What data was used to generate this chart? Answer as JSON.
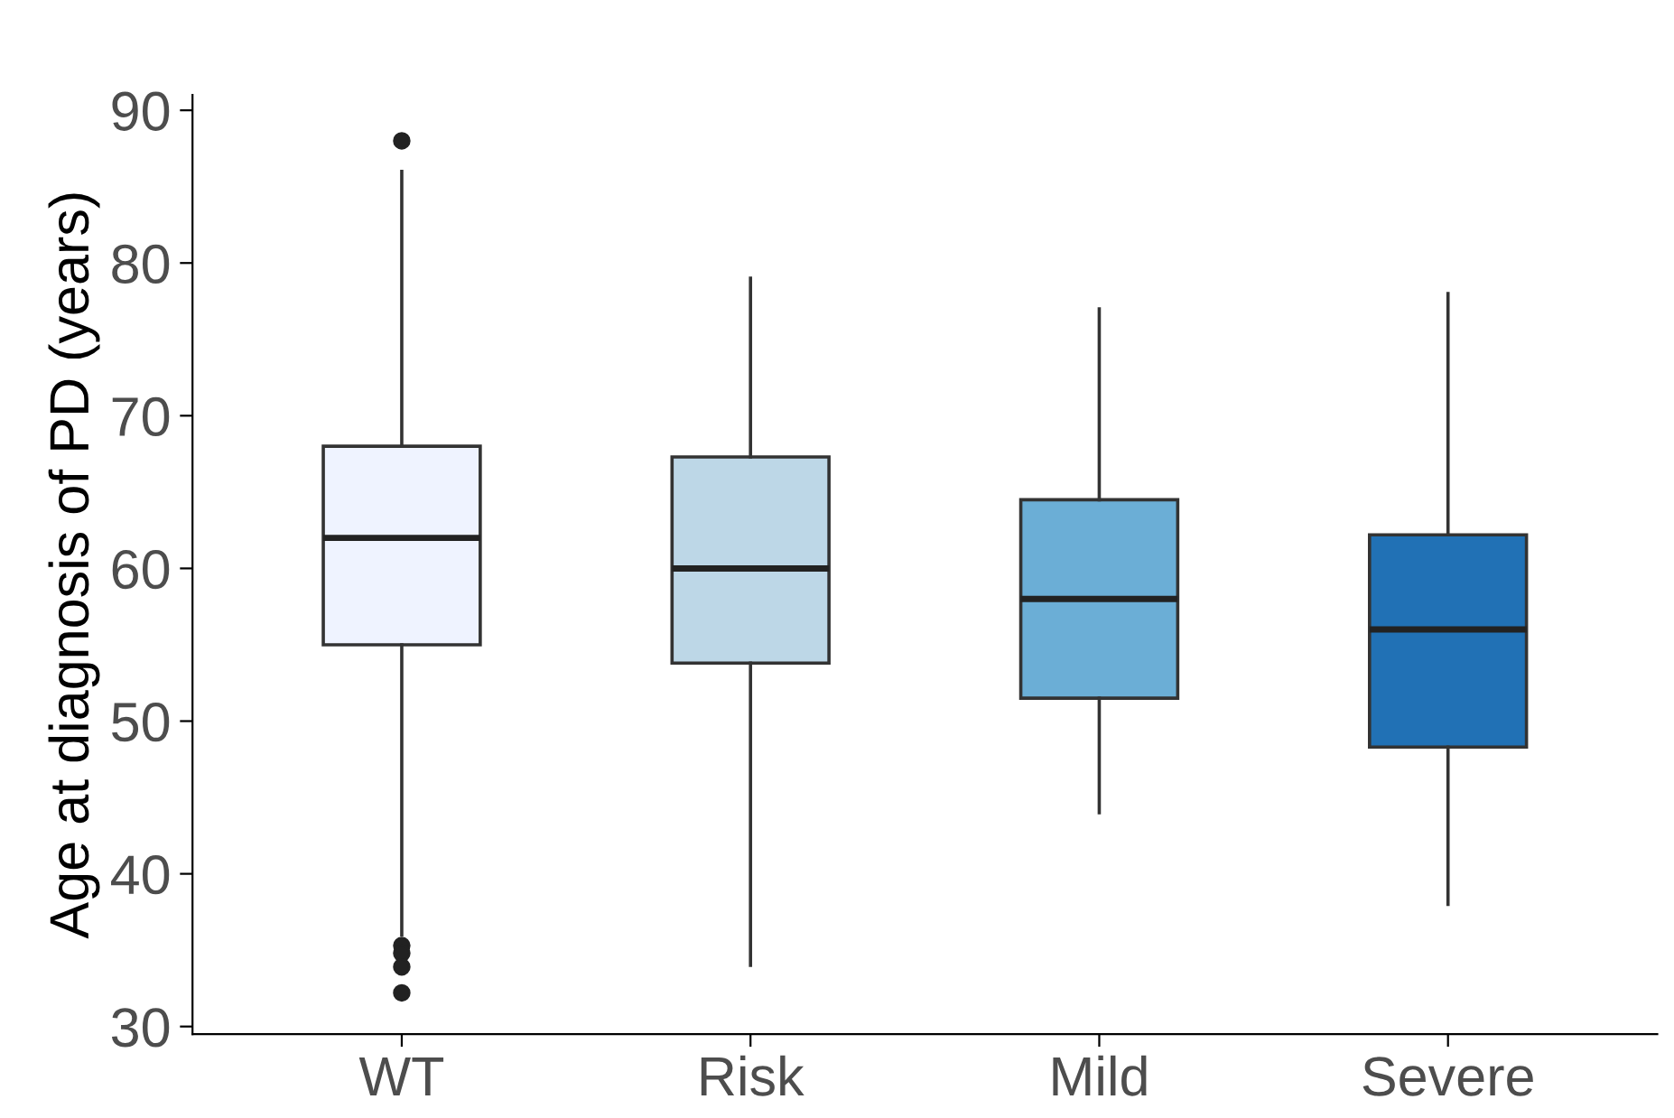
{
  "chart_data": {
    "type": "box",
    "ylabel": "Age at diagnosis of PD (years)",
    "categories": [
      "WT",
      "Risk",
      "Mild",
      "Severe"
    ],
    "colors": [
      "#eff3ff",
      "#bdd7e7",
      "#6baed6",
      "#2171b5"
    ],
    "boxes": [
      {
        "low": 36,
        "q1": 55,
        "median": 62,
        "q3": 68,
        "high": 86,
        "outliers": [
          88,
          35.3,
          34.8,
          33.9,
          32.2
        ]
      },
      {
        "low": 34,
        "q1": 53.8,
        "median": 60,
        "q3": 67.3,
        "high": 79
      },
      {
        "low": 44,
        "q1": 51.5,
        "median": 58,
        "q3": 64.5,
        "high": 77
      },
      {
        "low": 38,
        "q1": 48.3,
        "median": 56,
        "q3": 62.2,
        "high": 78
      }
    ],
    "ylim": [
      29.5,
      91
    ],
    "yticks": [
      30,
      40,
      50,
      60,
      70,
      80,
      90
    ],
    "grid": false
  }
}
